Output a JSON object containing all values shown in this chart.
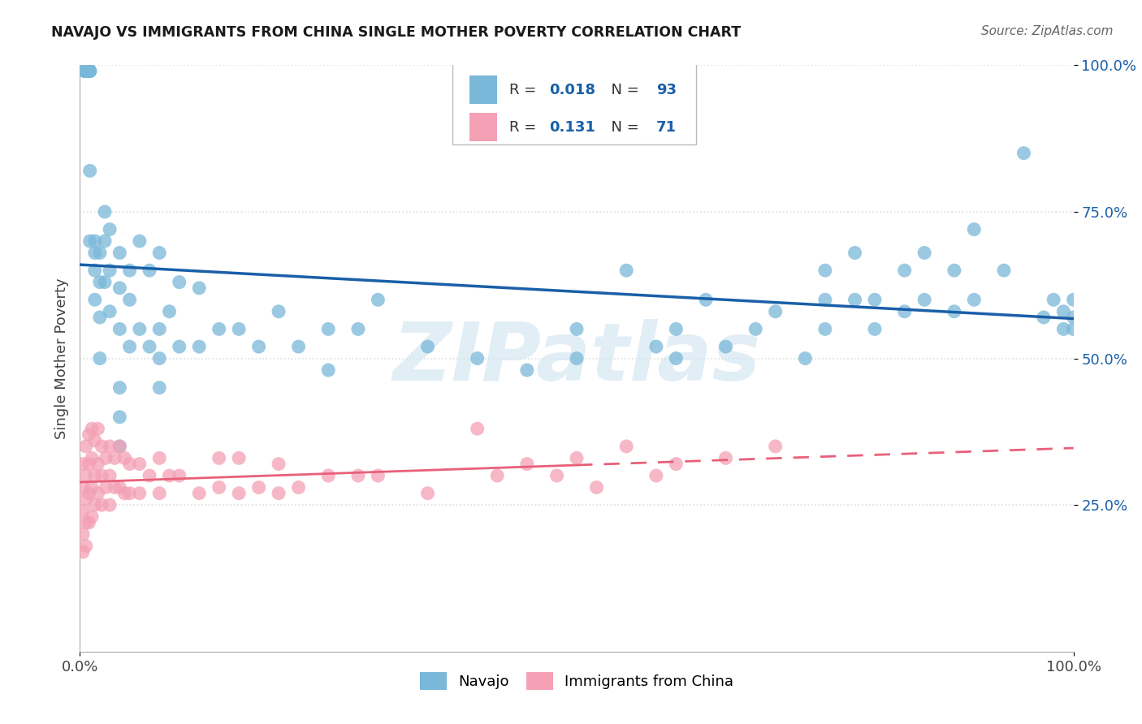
{
  "title": "NAVAJO VS IMMIGRANTS FROM CHINA SINGLE MOTHER POVERTY CORRELATION CHART",
  "source": "Source: ZipAtlas.com",
  "ylabel": "Single Mother Poverty",
  "blue_R": "0.018",
  "blue_N": "93",
  "pink_R": "0.131",
  "pink_N": "71",
  "blue_color": "#7ab8d9",
  "pink_color": "#f4a0b5",
  "blue_line_color": "#1a5fa8",
  "pink_line_color": "#e8607a",
  "watermark_color": "#d0e4f0",
  "background_color": "#ffffff",
  "grid_color": "#dddddd",
  "ytick_vals": [
    0.25,
    0.5,
    0.75,
    1.0
  ],
  "ytick_labels": [
    "25.0%",
    "50.0%",
    "75.0%",
    "100.0%"
  ],
  "blue_scatter_x": [
    0.005,
    0.005,
    0.005,
    0.005,
    0.005,
    0.01,
    0.01,
    0.01,
    0.01,
    0.01,
    0.01,
    0.015,
    0.015,
    0.015,
    0.015,
    0.02,
    0.02,
    0.02,
    0.02,
    0.025,
    0.025,
    0.025,
    0.03,
    0.03,
    0.03,
    0.04,
    0.04,
    0.04,
    0.05,
    0.05,
    0.05,
    0.06,
    0.06,
    0.07,
    0.07,
    0.08,
    0.08,
    0.09,
    0.1,
    0.1,
    0.12,
    0.12,
    0.14,
    0.16,
    0.18,
    0.2,
    0.22,
    0.25,
    0.25,
    0.28,
    0.3,
    0.35,
    0.4,
    0.45,
    0.5,
    0.5,
    0.55,
    0.58,
    0.6,
    0.6,
    0.63,
    0.65,
    0.68,
    0.7,
    0.73,
    0.75,
    0.75,
    0.75,
    0.78,
    0.78,
    0.8,
    0.8,
    0.83,
    0.83,
    0.85,
    0.85,
    0.88,
    0.88,
    0.9,
    0.9,
    0.93,
    0.95,
    0.97,
    0.98,
    0.99,
    0.99,
    1.0,
    1.0,
    1.0,
    0.04,
    0.04,
    0.04,
    0.08,
    0.08
  ],
  "blue_scatter_y": [
    0.99,
    0.99,
    0.99,
    0.99,
    0.99,
    0.99,
    0.99,
    0.99,
    0.99,
    0.82,
    0.7,
    0.7,
    0.68,
    0.65,
    0.6,
    0.68,
    0.63,
    0.57,
    0.5,
    0.75,
    0.7,
    0.63,
    0.72,
    0.65,
    0.58,
    0.68,
    0.62,
    0.55,
    0.65,
    0.6,
    0.52,
    0.7,
    0.55,
    0.65,
    0.52,
    0.68,
    0.55,
    0.58,
    0.63,
    0.52,
    0.62,
    0.52,
    0.55,
    0.55,
    0.52,
    0.58,
    0.52,
    0.55,
    0.48,
    0.55,
    0.6,
    0.52,
    0.5,
    0.48,
    0.55,
    0.5,
    0.65,
    0.52,
    0.55,
    0.5,
    0.6,
    0.52,
    0.55,
    0.58,
    0.5,
    0.65,
    0.6,
    0.55,
    0.68,
    0.6,
    0.6,
    0.55,
    0.65,
    0.58,
    0.68,
    0.6,
    0.65,
    0.58,
    0.72,
    0.6,
    0.65,
    0.85,
    0.57,
    0.6,
    0.58,
    0.55,
    0.6,
    0.57,
    0.55,
    0.45,
    0.4,
    0.35,
    0.5,
    0.45
  ],
  "pink_scatter_x": [
    0.003,
    0.003,
    0.003,
    0.003,
    0.003,
    0.006,
    0.006,
    0.006,
    0.006,
    0.006,
    0.009,
    0.009,
    0.009,
    0.009,
    0.012,
    0.012,
    0.012,
    0.012,
    0.015,
    0.015,
    0.015,
    0.018,
    0.018,
    0.018,
    0.022,
    0.022,
    0.022,
    0.026,
    0.026,
    0.03,
    0.03,
    0.03,
    0.035,
    0.035,
    0.04,
    0.04,
    0.045,
    0.045,
    0.05,
    0.05,
    0.06,
    0.06,
    0.07,
    0.08,
    0.08,
    0.09,
    0.1,
    0.12,
    0.14,
    0.14,
    0.16,
    0.16,
    0.18,
    0.2,
    0.2,
    0.22,
    0.25,
    0.28,
    0.3,
    0.35,
    0.4,
    0.42,
    0.45,
    0.48,
    0.5,
    0.52,
    0.55,
    0.58,
    0.6,
    0.65,
    0.7
  ],
  "pink_scatter_y": [
    0.32,
    0.28,
    0.24,
    0.2,
    0.17,
    0.35,
    0.3,
    0.26,
    0.22,
    0.18,
    0.37,
    0.32,
    0.27,
    0.22,
    0.38,
    0.33,
    0.28,
    0.23,
    0.36,
    0.3,
    0.25,
    0.38,
    0.32,
    0.27,
    0.35,
    0.3,
    0.25,
    0.33,
    0.28,
    0.35,
    0.3,
    0.25,
    0.33,
    0.28,
    0.35,
    0.28,
    0.33,
    0.27,
    0.32,
    0.27,
    0.32,
    0.27,
    0.3,
    0.33,
    0.27,
    0.3,
    0.3,
    0.27,
    0.33,
    0.28,
    0.33,
    0.27,
    0.28,
    0.32,
    0.27,
    0.28,
    0.3,
    0.3,
    0.3,
    0.27,
    0.38,
    0.3,
    0.32,
    0.3,
    0.33,
    0.28,
    0.35,
    0.3,
    0.32,
    0.33,
    0.35
  ]
}
